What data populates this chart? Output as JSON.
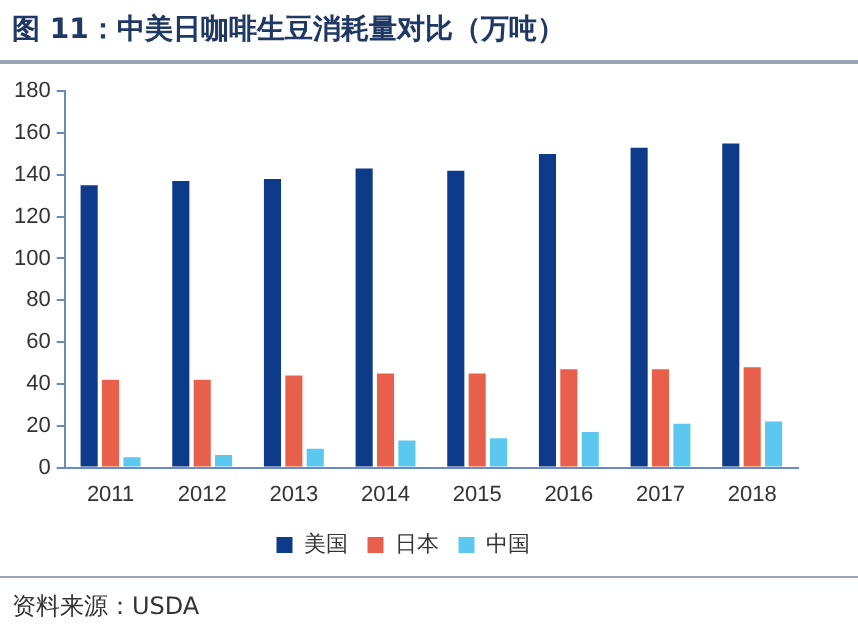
{
  "chart_data": {
    "type": "bar",
    "title": "图 11：中美日咖啡生豆消耗量对比（万吨）",
    "annotations": [
      "资料来源：USDA"
    ],
    "categories": [
      "2011",
      "2012",
      "2013",
      "2014",
      "2015",
      "2016",
      "2017",
      "2018"
    ],
    "series": [
      {
        "name": "美国",
        "color": "#0e3a8a",
        "values": [
          135,
          137,
          138,
          143,
          142,
          150,
          153,
          155
        ]
      },
      {
        "name": "日本",
        "color": "#e8604c",
        "values": [
          42,
          42,
          44,
          45,
          45,
          47,
          47,
          48
        ]
      },
      {
        "name": "中国",
        "color": "#5cc8f0",
        "values": [
          5,
          6,
          9,
          13,
          14,
          17,
          21,
          22
        ]
      }
    ],
    "ylim": [
      0,
      180
    ],
    "yticks": [
      0,
      20,
      40,
      60,
      80,
      100,
      120,
      140,
      160,
      180
    ],
    "grid": false,
    "legend": "bottom"
  }
}
